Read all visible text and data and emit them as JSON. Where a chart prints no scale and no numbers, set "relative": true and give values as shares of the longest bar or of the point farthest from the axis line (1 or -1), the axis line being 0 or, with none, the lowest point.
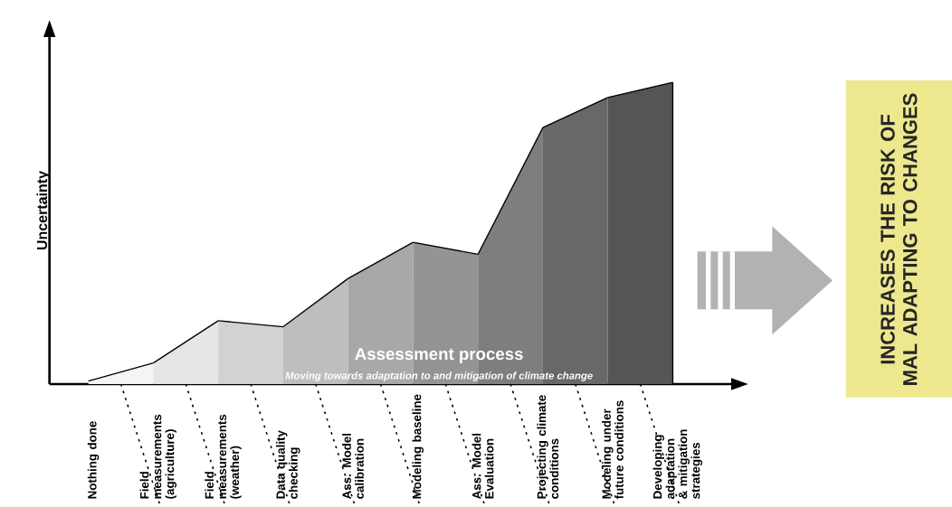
{
  "chart_data": {
    "type": "area",
    "relative": true,
    "ylabel": "Uncertainty",
    "categories": [
      "Nothing done",
      "Field measurements (agriculture)",
      "Field measurements (weather)",
      "Data quality checking",
      "Ass. Model calibration",
      "Modeling baseline",
      "Ass. Model Evaluation",
      "Projecting climate conditions",
      "Modeling under future conditions",
      "Developing adaptation & mitigation strategies"
    ],
    "series": [
      {
        "color": "#f4f4f4",
        "values": [
          0.01,
          0.07,
          null,
          null,
          null,
          null,
          null,
          null,
          null,
          null
        ]
      },
      {
        "color": "#e6e6e6",
        "values": [
          null,
          0.07,
          0.21,
          null,
          null,
          null,
          null,
          null,
          null,
          null
        ]
      },
      {
        "color": "#d2d2d2",
        "values": [
          null,
          null,
          0.21,
          0.19,
          null,
          null,
          null,
          null,
          null,
          null
        ]
      },
      {
        "color": "#bebebe",
        "values": [
          null,
          null,
          null,
          0.19,
          0.35,
          null,
          null,
          null,
          null,
          null
        ]
      },
      {
        "color": "#a8a8a8",
        "values": [
          null,
          null,
          null,
          null,
          0.35,
          0.47,
          null,
          null,
          null,
          null
        ]
      },
      {
        "color": "#949494",
        "values": [
          null,
          null,
          null,
          null,
          null,
          0.47,
          0.43,
          null,
          null,
          null
        ]
      },
      {
        "color": "#7e7e7e",
        "values": [
          null,
          null,
          null,
          null,
          null,
          null,
          0.43,
          0.85,
          null,
          null
        ]
      },
      {
        "color": "#686868",
        "values": [
          null,
          null,
          null,
          null,
          null,
          null,
          null,
          0.85,
          0.95,
          null
        ]
      },
      {
        "color": "#555555",
        "values": [
          null,
          null,
          null,
          null,
          null,
          null,
          null,
          null,
          0.95,
          1.0
        ]
      }
    ],
    "annotations": [
      "Assessment process",
      "Moving towards adaptation to and mitigation of climate change",
      "INCREASES THE RISK OF MAL ADAPTING TO CHANGES"
    ]
  }
}
